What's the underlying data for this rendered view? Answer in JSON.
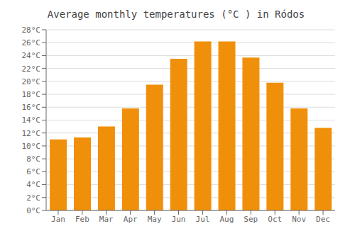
{
  "chart_data": {
    "type": "bar",
    "title": "Average monthly temperatures (°C ) in Ródos",
    "categories": [
      "Jan",
      "Feb",
      "Mar",
      "Apr",
      "May",
      "Jun",
      "Jul",
      "Aug",
      "Sep",
      "Oct",
      "Nov",
      "Dec"
    ],
    "values": [
      11,
      11.3,
      13,
      15.8,
      19.5,
      23.5,
      26.2,
      26.2,
      23.7,
      19.8,
      15.8,
      12.8
    ],
    "color": "#F0900A",
    "ylim": [
      0,
      28
    ],
    "yticks": [
      {
        "value": 0,
        "label": "0°C"
      },
      {
        "value": 2,
        "label": "2°C"
      },
      {
        "value": 4,
        "label": "4°C"
      },
      {
        "value": 6,
        "label": "6°C"
      },
      {
        "value": 8,
        "label": "8°C"
      },
      {
        "value": 10,
        "label": "10°C"
      },
      {
        "value": 12,
        "label": "12°C"
      },
      {
        "value": 14,
        "label": "14°C"
      },
      {
        "value": 16,
        "label": "16°C"
      },
      {
        "value": 18,
        "label": "18°C"
      },
      {
        "value": 20,
        "label": "20°C"
      },
      {
        "value": 22,
        "label": "22°C"
      },
      {
        "value": 24,
        "label": "24°C"
      },
      {
        "value": 26,
        "label": "26°C"
      },
      {
        "value": 28,
        "label": "28°C"
      }
    ],
    "grid": true
  }
}
